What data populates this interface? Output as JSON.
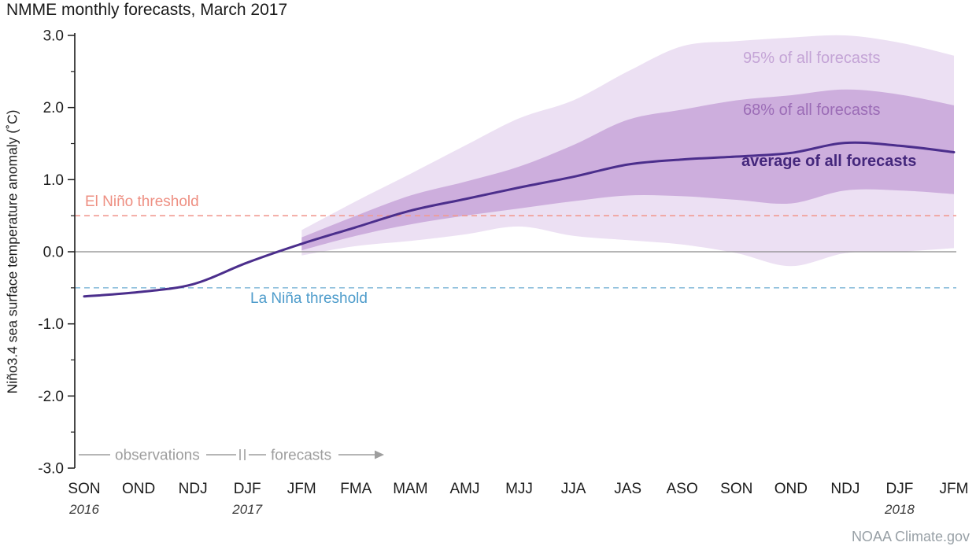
{
  "labels": {
    "p95": "95% of all forecasts",
    "p68": "68% of all forecasts",
    "avg": "average of all forecasts",
    "el_nino": "El Niño threshold",
    "la_nina": "La Niña threshold",
    "observations": "observations",
    "forecasts": "forecasts",
    "credit": "NOAA Climate.gov"
  },
  "colors": {
    "avg_line": "#4b2e8c",
    "avg_text": "#44277c",
    "band_68": "#cdaedd",
    "band_95": "#ece0f3",
    "p95_text": "#c4a4d6",
    "p68_text": "#9b6cb6",
    "el_nino_line": "#f19b92",
    "el_nino_text": "#ee8f82",
    "la_nina_line": "#8cbedc",
    "la_nina_text": "#4e9ccb",
    "zero_line": "#8a8a8a",
    "axis": "#1c1c1c",
    "annotation_gray": "#9e9e9e",
    "credit_gray": "#98a0a6",
    "year_text": "#3c3c3c"
  },
  "chart_data": {
    "type": "line",
    "title": "NMME monthly forecasts, March 2017",
    "ylabel": "Niño3.4 sea surface temperature anomaly (˚C)",
    "ylim": [
      -3.0,
      3.0
    ],
    "yticks": [
      3.0,
      2.0,
      1.0,
      0.0,
      -1.0,
      -2.0,
      -3.0
    ],
    "categories": [
      "SON",
      "OND",
      "NDJ",
      "DJF",
      "JFM",
      "FMA",
      "MAM",
      "AMJ",
      "MJJ",
      "JJA",
      "JAS",
      "ASO",
      "SON",
      "OND",
      "NDJ",
      "DJF",
      "JFM"
    ],
    "year_labels": [
      {
        "index": 0,
        "label": "2016"
      },
      {
        "index": 3,
        "label": "2017"
      },
      {
        "index": 15,
        "label": "2018"
      }
    ],
    "observations_end_index": 4,
    "series": [
      {
        "name": "average of all forecasts",
        "values": [
          -0.62,
          -0.56,
          -0.45,
          -0.15,
          0.11,
          0.34,
          0.57,
          0.73,
          0.89,
          1.04,
          1.21,
          1.28,
          1.32,
          1.37,
          1.51,
          1.47,
          1.38
        ]
      }
    ],
    "bands": [
      {
        "name": "95% of all forecasts",
        "start_index": 4,
        "lower": [
          -0.05,
          0.08,
          0.15,
          0.24,
          0.35,
          0.22,
          0.16,
          0.1,
          -0.02,
          -0.2,
          -0.02,
          0.0,
          0.05
        ],
        "upper": [
          0.3,
          0.7,
          1.08,
          1.47,
          1.85,
          2.1,
          2.5,
          2.85,
          2.92,
          2.97,
          3.0,
          2.9,
          2.72
        ]
      },
      {
        "name": "68% of all forecasts",
        "start_index": 4,
        "lower": [
          0.02,
          0.22,
          0.38,
          0.5,
          0.6,
          0.7,
          0.78,
          0.77,
          0.72,
          0.67,
          0.85,
          0.85,
          0.8
        ],
        "upper": [
          0.2,
          0.5,
          0.78,
          0.97,
          1.18,
          1.48,
          1.83,
          1.97,
          2.1,
          2.17,
          2.25,
          2.18,
          2.03
        ]
      }
    ],
    "thresholds": {
      "el_nino": 0.5,
      "la_nina": -0.5
    },
    "grid": false,
    "legend_position": "inline-annotations"
  }
}
